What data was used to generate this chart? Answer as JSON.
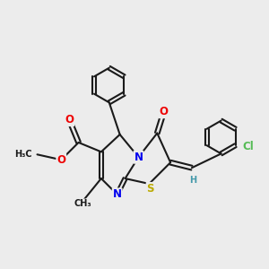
{
  "bg_color": "#ececec",
  "bond_color": "#1a1a1a",
  "bond_width": 1.5,
  "atom_colors": {
    "N": "#0000ee",
    "O": "#ee0000",
    "S": "#bbaa00",
    "Cl": "#55bb55",
    "C": "#1a1a1a",
    "H": "#4499aa"
  },
  "font_size_atom": 8.5,
  "font_size_small": 7.0,
  "dbo": 0.07
}
